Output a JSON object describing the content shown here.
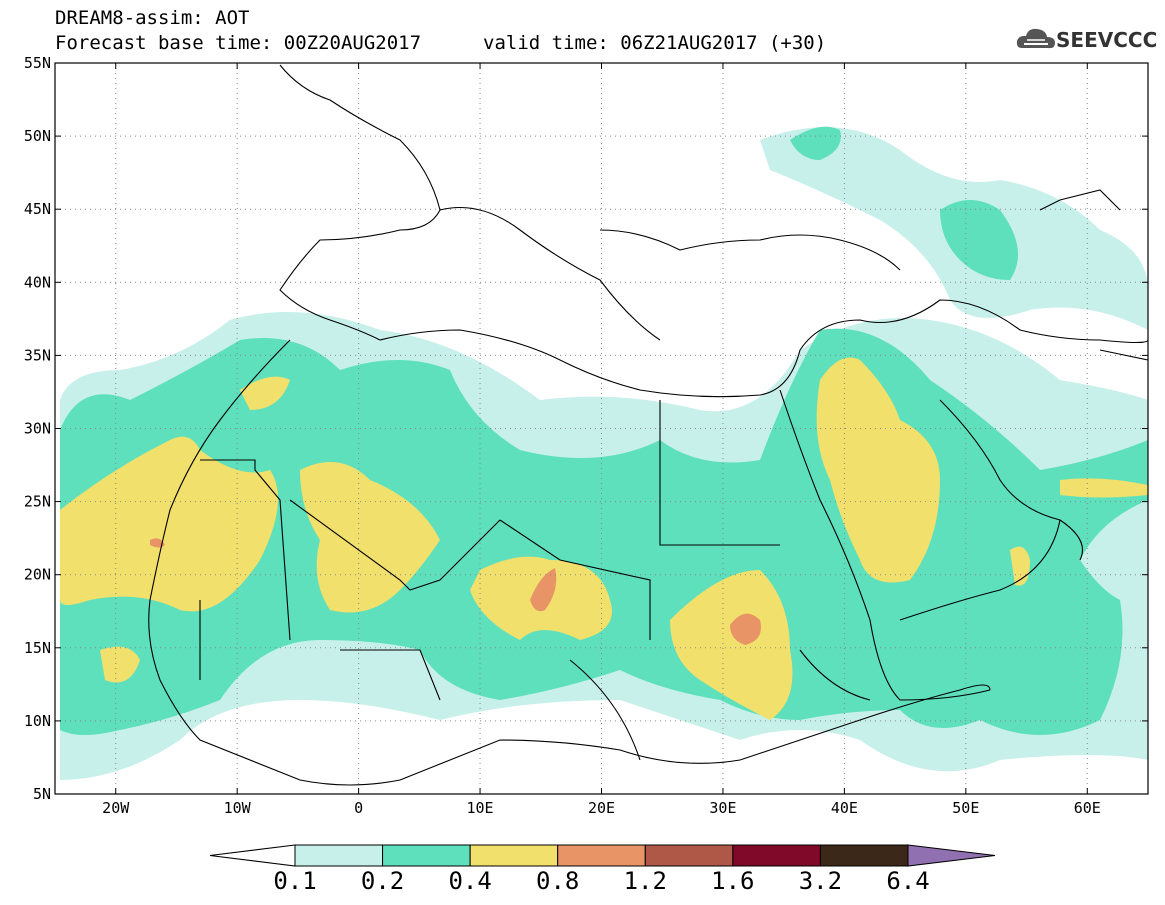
{
  "header": {
    "title_line1": "DREAM8-assim: AOT",
    "title_line2": "Forecast base time: 00Z20AUG2017",
    "valid_time": "valid time: 06Z21AUG2017 (+30)",
    "logo_text": "SEEVCCC"
  },
  "map": {
    "lon_range": [
      -25,
      65
    ],
    "lat_range": [
      5,
      55
    ],
    "lat_labels": [
      "55N",
      "50N",
      "45N",
      "40N",
      "35N",
      "30N",
      "25N",
      "20N",
      "15N",
      "10N",
      "5N"
    ],
    "lon_labels": [
      "20W",
      "10W",
      "0",
      "10E",
      "20E",
      "30E",
      "40E",
      "50E",
      "60E"
    ]
  },
  "colorbar": {
    "colors": [
      "#c8f0ea",
      "#5ee0bc",
      "#f2e06c",
      "#e89467",
      "#b05848",
      "#800828",
      "#3c2818",
      "#9070b0"
    ],
    "labels": [
      "0.1",
      "0.2",
      "0.4",
      "0.8",
      "1.2",
      "1.6",
      "3.2",
      "6.4"
    ]
  }
}
